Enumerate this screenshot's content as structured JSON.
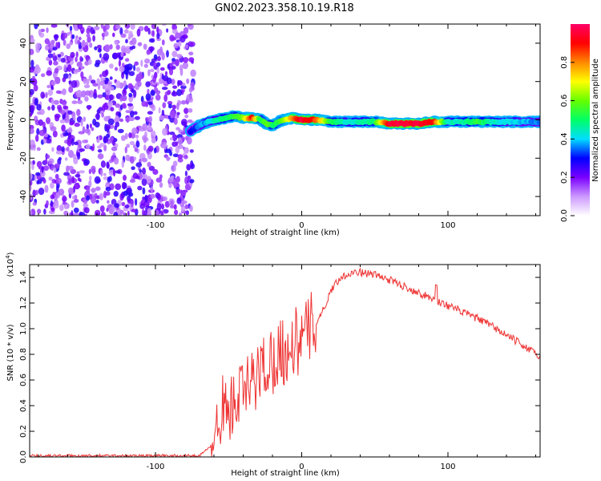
{
  "figure_title": "GN02.2023.358.10.19.R18",
  "chart_data": [
    {
      "type": "heatmap",
      "title": "GN02.2023.358.10.19.R18",
      "xlabel": "Height of straight line (km)",
      "ylabel": "Frequency (Hz)",
      "xlim": [
        -186,
        163
      ],
      "ylim": [
        -50,
        50
      ],
      "x_ticks": [
        -100,
        0,
        100
      ],
      "x_tick_labels": [
        "-100",
        "0",
        "100"
      ],
      "y_ticks": [
        -40,
        -20,
        0,
        20,
        40
      ],
      "y_tick_labels": [
        "-40",
        "-20",
        "0",
        "20",
        "40"
      ],
      "colorbar": {
        "label": "Normalized spectral amplitude",
        "range": [
          0,
          1
        ],
        "ticks": [
          0.0,
          0.2,
          0.4,
          0.6,
          0.8
        ],
        "tick_labels": [
          "0.0",
          "0.2",
          "0.4",
          "0.6",
          "0.8"
        ],
        "colors": [
          "#ffffff",
          "#cc99ff",
          "#7a00ff",
          "#0000ff",
          "#00ddff",
          "#00ff66",
          "#66ff00",
          "#ffff00",
          "#ff8800",
          "#ff0000",
          "#ff0066"
        ]
      },
      "noise_region_x": [
        -186,
        -74
      ],
      "signal_track": {
        "x": [
          -76,
          -70,
          -64,
          -58,
          -52,
          -46,
          -40,
          -34,
          -28,
          -24,
          -20,
          -16,
          -12,
          -6,
          0,
          10,
          20,
          30,
          40,
          50,
          60,
          70,
          80,
          90,
          100,
          110,
          120,
          130,
          140,
          150,
          163
        ],
        "freq_hz": [
          -6,
          -3,
          -1,
          0,
          1,
          2,
          1,
          1,
          0,
          -2,
          -3,
          -1,
          0,
          1,
          0,
          0,
          -1,
          -1,
          -1,
          -1,
          -2,
          -2,
          -2,
          -1,
          -1,
          -1,
          -1,
          -1,
          -1,
          -1,
          -1
        ],
        "amplitude": [
          0.3,
          0.35,
          0.4,
          0.45,
          0.5,
          0.55,
          0.6,
          0.9,
          0.5,
          0.6,
          0.5,
          0.55,
          0.6,
          0.8,
          0.95,
          0.85,
          0.5,
          0.45,
          0.45,
          0.5,
          0.95,
          0.95,
          0.95,
          0.9,
          0.45,
          0.45,
          0.55,
          0.45,
          0.4,
          0.4,
          0.35
        ]
      }
    },
    {
      "type": "line",
      "xlabel": "Height of straight line (km)",
      "ylabel": "SNR (10 * v/v)",
      "y_scale_label": "(x10",
      "y_scale_exp": "4",
      "y_scale_close": ")",
      "xlim": [
        -186,
        163
      ],
      "ylim": [
        0,
        1.5
      ],
      "x_ticks": [
        -100,
        0,
        100
      ],
      "x_tick_labels": [
        "-100",
        "0",
        "100"
      ],
      "y_ticks": [
        0.0,
        0.2,
        0.4,
        0.6,
        0.8,
        1.0,
        1.2,
        1.4
      ],
      "y_tick_labels": [
        "0.0",
        "0.2",
        "0.4",
        "0.6",
        "0.8",
        "1.0",
        "1.2",
        "1.4"
      ],
      "series": [
        {
          "color": "#ee3333",
          "x": [
            -186,
            -150,
            -100,
            -70,
            -60,
            -55,
            -50,
            -45,
            -40,
            -35,
            -30,
            -25,
            -20,
            -15,
            -10,
            -5,
            0,
            5,
            10,
            15,
            20,
            25,
            30,
            35,
            40,
            50,
            60,
            70,
            80,
            90,
            100,
            110,
            120,
            130,
            140,
            150,
            163
          ],
          "y": [
            0.01,
            0.01,
            0.01,
            0.01,
            0.1,
            0.4,
            0.35,
            0.45,
            0.5,
            0.55,
            0.65,
            0.72,
            0.75,
            0.85,
            0.8,
            0.9,
            0.9,
            1.0,
            1.05,
            1.15,
            1.3,
            1.38,
            1.42,
            1.44,
            1.44,
            1.42,
            1.38,
            1.33,
            1.28,
            1.23,
            1.18,
            1.13,
            1.08,
            1.02,
            0.95,
            0.88,
            0.78
          ]
        }
      ]
    }
  ]
}
